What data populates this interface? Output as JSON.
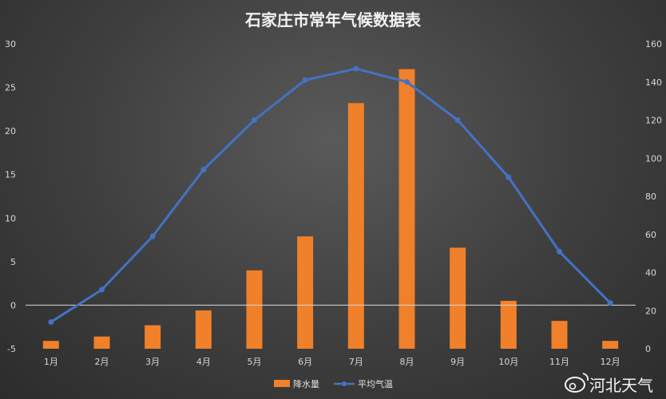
{
  "chart_data": {
    "type": "bar+line",
    "title": "石家庄市常年气候数据表",
    "categories": [
      "1月",
      "2月",
      "3月",
      "4月",
      "5月",
      "6月",
      "7月",
      "8月",
      "9月",
      "10月",
      "11月",
      "12月"
    ],
    "series": [
      {
        "name": "降水量",
        "type": "bar",
        "axis": "left",
        "color": "#f0802a",
        "values": [
          -4.1,
          -3.6,
          -2.3,
          -0.6,
          4.0,
          7.9,
          23.2,
          27.1,
          6.6,
          0.5,
          -1.8,
          -4.1
        ]
      },
      {
        "name": "平均气温",
        "type": "line",
        "axis": "right",
        "color": "#4472c4",
        "values": [
          14,
          31,
          59,
          94,
          120,
          141,
          147,
          140,
          120,
          90,
          51,
          24
        ]
      }
    ],
    "y_left": {
      "min": -5,
      "max": 30,
      "ticks": [
        -5,
        0,
        5,
        10,
        15,
        20,
        25,
        30
      ]
    },
    "y_right": {
      "min": 0,
      "max": 160,
      "ticks": [
        0,
        20,
        40,
        60,
        80,
        100,
        120,
        140,
        160
      ]
    },
    "legend_position": "bottom",
    "grid": false
  },
  "watermark": {
    "text": "河北天气",
    "icon": "weibo-icon"
  }
}
